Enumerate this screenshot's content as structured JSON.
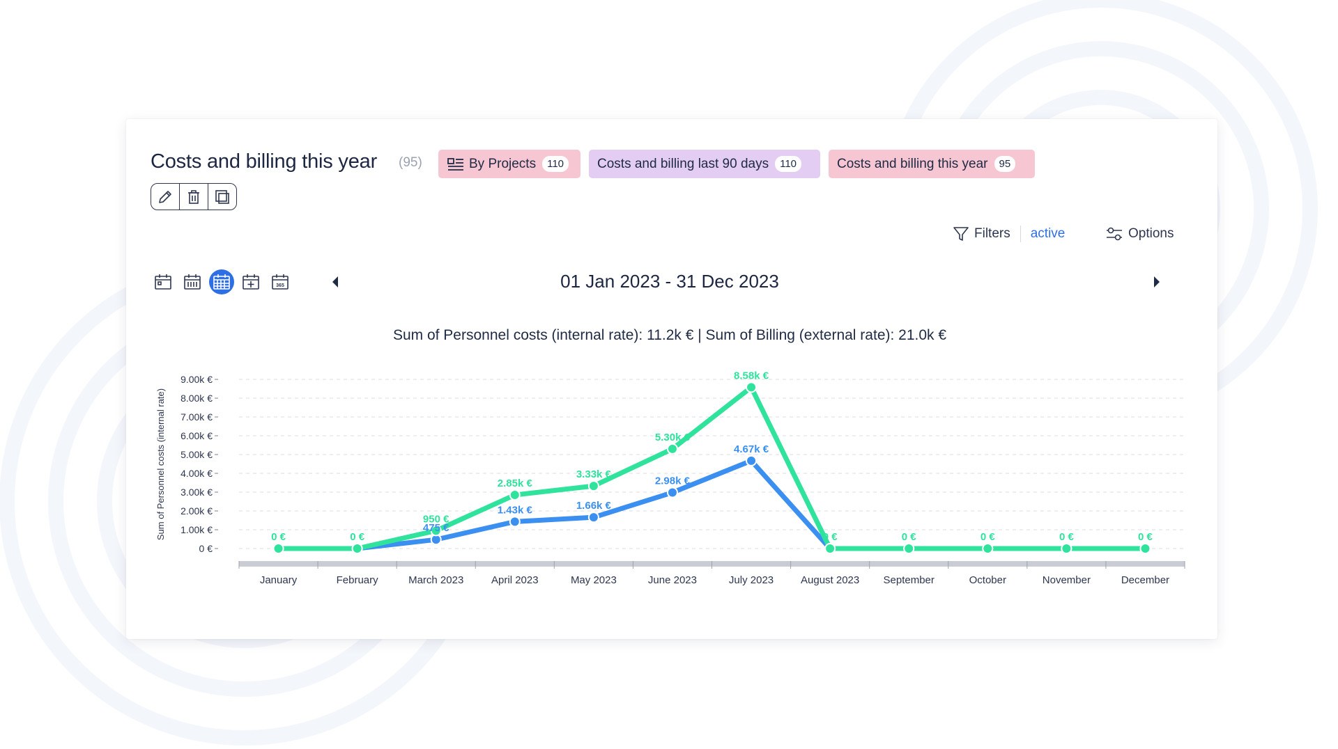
{
  "header": {
    "title": "Costs and billing this year",
    "count": "(95)"
  },
  "tags": [
    {
      "label": "By Projects",
      "count": "110"
    },
    {
      "label": "Costs and billing last 90 days",
      "count": "110"
    },
    {
      "label": "Costs and billing this year",
      "count": "95"
    }
  ],
  "filters": {
    "label": "Filters",
    "status": "active"
  },
  "options": {
    "label": "Options"
  },
  "period": {
    "range": "01 Jan 2023 - 31 Dec 2023",
    "active_view": "month-view",
    "views": [
      "day-view",
      "week-view",
      "month-view",
      "custom-range",
      "year-view"
    ],
    "year_icon_text": "365"
  },
  "summary": "Sum of Personnel costs (internal rate): 11.2k € | Sum of Billing (external rate): 21.0k €",
  "colors": {
    "billing": "#2fe39c",
    "personnel": "#3a8ff0",
    "accent": "#2f6fe4",
    "tag_pink": "#f6c6d3",
    "tag_purple": "#e3cdf2"
  },
  "chart_data": {
    "type": "line",
    "categories": [
      "January",
      "February",
      "March 2023",
      "April 2023",
      "May 2023",
      "June 2023",
      "July 2023",
      "August 2023",
      "September",
      "October",
      "November",
      "December"
    ],
    "ylabel": "Sum of Personnel costs (internal rate)",
    "ylim": [
      0,
      9000
    ],
    "yticks": [
      {
        "v": 0,
        "label": "0 €"
      },
      {
        "v": 1000,
        "label": "1.00k €"
      },
      {
        "v": 2000,
        "label": "2.00k €"
      },
      {
        "v": 3000,
        "label": "3.00k €"
      },
      {
        "v": 4000,
        "label": "4.00k €"
      },
      {
        "v": 5000,
        "label": "5.00k €"
      },
      {
        "v": 6000,
        "label": "6.00k €"
      },
      {
        "v": 7000,
        "label": "7.00k €"
      },
      {
        "v": 8000,
        "label": "8.00k €"
      },
      {
        "v": 9000,
        "label": "9.00k €"
      }
    ],
    "grid": true,
    "series": [
      {
        "key": "personnel",
        "values": [
          0,
          0,
          475,
          1430,
          1660,
          2980,
          4670,
          0,
          0,
          0,
          0,
          0
        ],
        "labels": [
          "",
          "",
          "475 €",
          "1.43k €",
          "1.66k €",
          "2.98k €",
          "4.67k €",
          "",
          "",
          "",
          "",
          ""
        ]
      },
      {
        "key": "billing",
        "values": [
          0,
          0,
          950,
          2850,
          3330,
          5300,
          8580,
          0,
          0,
          0,
          0,
          0
        ],
        "labels": [
          "0 €",
          "0 €",
          "950 €",
          "2.85k €",
          "3.33k €",
          "5.30k €",
          "8.58k €",
          "0 €",
          "0 €",
          "0 €",
          "0 €",
          "0 €"
        ]
      }
    ]
  }
}
